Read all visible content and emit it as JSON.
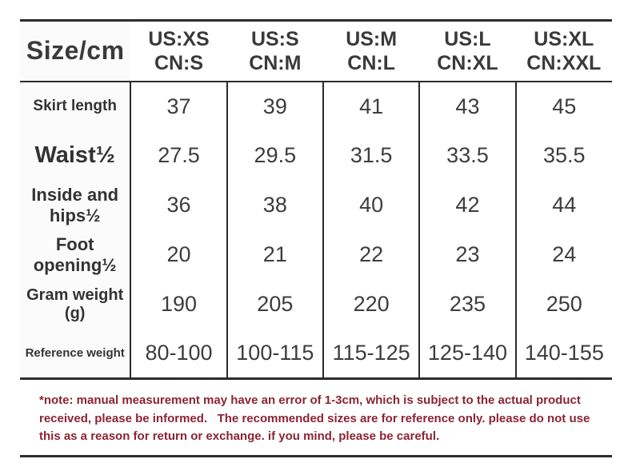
{
  "table": {
    "corner_label": "Size/cm",
    "columns": [
      {
        "us": "US:XS",
        "cn": "CN:S"
      },
      {
        "us": "US:S",
        "cn": "CN:M"
      },
      {
        "us": "US:M",
        "cn": "CN:L"
      },
      {
        "us": "US:L",
        "cn": "CN:XL"
      },
      {
        "us": "US:XL",
        "cn": "CN:XXL"
      }
    ],
    "rows": [
      {
        "label": "Skirt length",
        "values": [
          "37",
          "39",
          "41",
          "43",
          "45"
        ]
      },
      {
        "label": "Waist½",
        "values": [
          "27.5",
          "29.5",
          "31.5",
          "33.5",
          "35.5"
        ]
      },
      {
        "label": "Inside and hips½",
        "values": [
          "36",
          "38",
          "40",
          "42",
          "44"
        ]
      },
      {
        "label": "Foot opening½",
        "values": [
          "20",
          "21",
          "22",
          "23",
          "24"
        ]
      },
      {
        "label": "Gram weight (g)",
        "values": [
          "190",
          "205",
          "220",
          "235",
          "250"
        ]
      },
      {
        "label": "Reference weight",
        "values": [
          "80-100",
          "100-115",
          "115-125",
          "125-140",
          "140-155"
        ]
      }
    ]
  },
  "note": {
    "text": "*note: manual measurement may have an error of 1-3cm, which is subject to the actual product received, please be informed.   The recommended sizes are for reference only. please do not use this as a reason for return or exchange. if you mind, please be careful."
  },
  "colors": {
    "text_dark": "#3a3a3a",
    "line_dark": "#2d2d2d",
    "note_red": "#8b2433"
  }
}
